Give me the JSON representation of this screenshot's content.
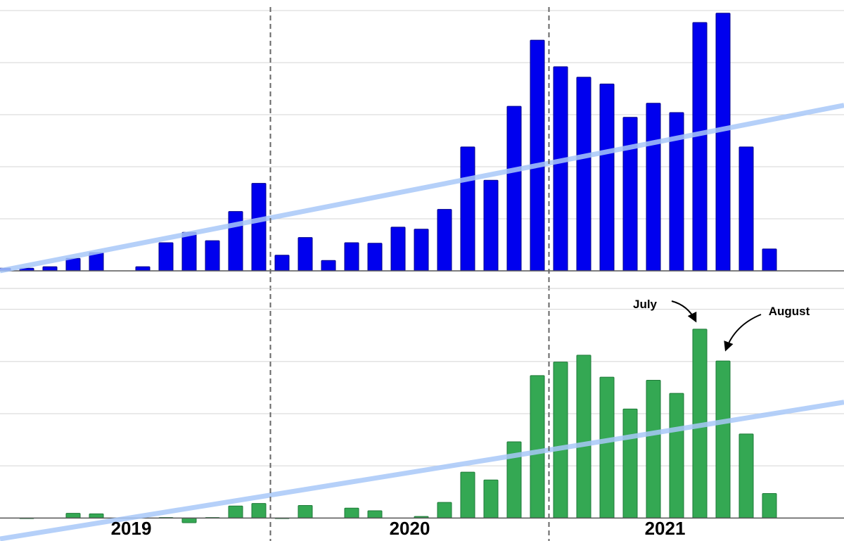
{
  "chart_data": [
    {
      "type": "bar",
      "color": "#0000ee",
      "stroke": "#00008a",
      "values": [
        0.05,
        0.05,
        0.08,
        0.24,
        0.35,
        0,
        0.08,
        0.54,
        0.74,
        0.58,
        1.14,
        1.68,
        0.3,
        0.64,
        0.2,
        0.54,
        0.53,
        0.84,
        0.8,
        1.18,
        2.38,
        1.74,
        3.16,
        4.43,
        3.92,
        3.72,
        3.59,
        2.95,
        3.22,
        3.04,
        4.77,
        4.95,
        2.38,
        0.42
      ],
      "ylim": [
        0,
        5
      ],
      "yticks": [
        0,
        1,
        2,
        3,
        4,
        5
      ],
      "grid": true,
      "trend": [
        0,
        3.18
      ],
      "trend_color": "#a8c8f8"
    },
    {
      "type": "bar",
      "color": "#34a853",
      "stroke": "#1e7a38",
      "categories": [
        "2019",
        "2019",
        "2019",
        "2019",
        "2019",
        "2019",
        "2019",
        "2019",
        "2019",
        "2019",
        "2019",
        "2019",
        "2020",
        "2020",
        "2020",
        "2020",
        "2020",
        "2020",
        "2020",
        "2020",
        "2020",
        "2020",
        "2020",
        "2020",
        "2021",
        "2021",
        "2021",
        "2021",
        "2021",
        "2021",
        "2021",
        "2021",
        "2021",
        "2021"
      ],
      "values": [
        0,
        -0.01,
        0,
        0.09,
        0.08,
        0,
        0,
        0.01,
        -0.09,
        0.01,
        0.23,
        0.28,
        -0.01,
        0.24,
        0,
        0.19,
        0.14,
        0,
        0.03,
        0.3,
        0.88,
        0.73,
        1.46,
        2.73,
        2.99,
        3.12,
        2.7,
        2.09,
        2.64,
        2.39,
        3.62,
        3.01,
        1.61,
        0.47
      ],
      "ylim": [
        -0.4,
        4.4
      ],
      "yticks": [
        0,
        1,
        2,
        3,
        4
      ],
      "grid": true,
      "trend": [
        -0.4,
        2.22
      ],
      "trend_color": "#a8c8f8",
      "annotations": [
        "July",
        "August"
      ]
    }
  ]
}
